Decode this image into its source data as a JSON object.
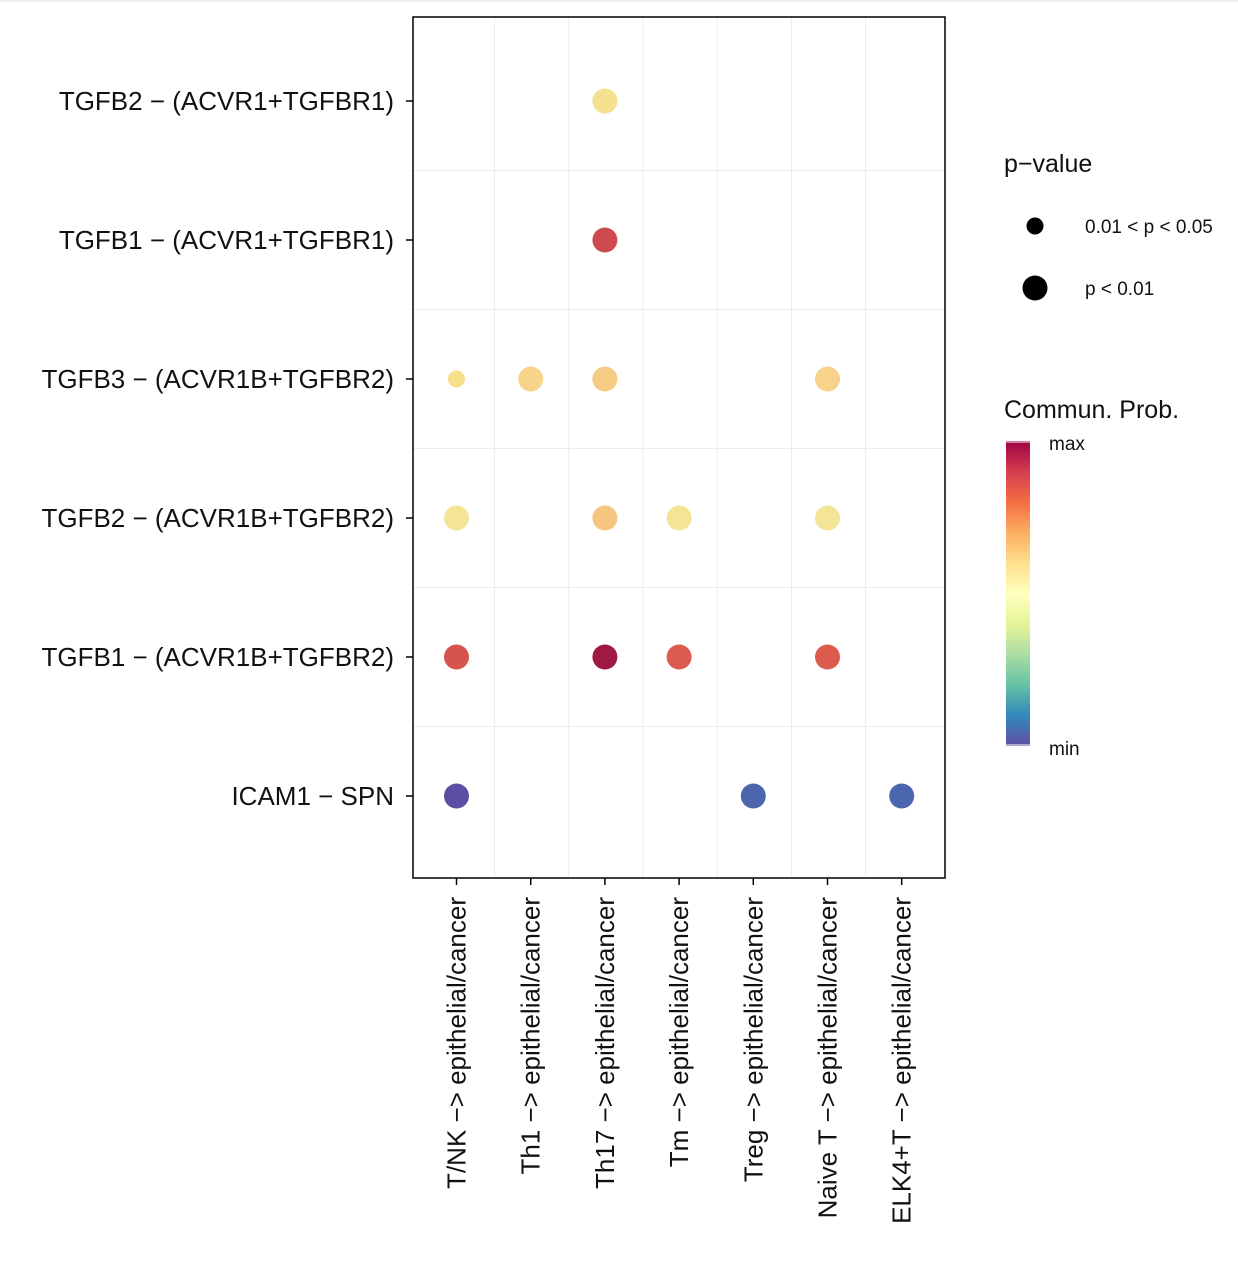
{
  "chart_data": {
    "type": "dotplot",
    "title": "",
    "xlabel": "",
    "ylabel": "",
    "x_categories": [
      "T/NK -> epithelial/cancer",
      "Th1 -> epithelial/cancer",
      "Th17 -> epithelial/cancer",
      "Tm -> epithelial/cancer",
      "Treg -> epithelial/cancer",
      "Naive T -> epithelial/cancer",
      "ELK4+T -> epithelial/cancer"
    ],
    "y_categories": [
      "TGFB2 - (ACVR1+TGFBR1)",
      "TGFB1 - (ACVR1+TGFBR1)",
      "TGFB3 - (ACVR1B+TGFBR2)",
      "TGFB2 - (ACVR1B+TGFBR2)",
      "TGFB1 - (ACVR1B+TGFBR2)",
      "ICAM1 - SPN"
    ],
    "points": [
      {
        "x": "Th17 -> epithelial/cancer",
        "y": "TGFB2 - (ACVR1+TGFBR1)",
        "prob": 0.55,
        "pvalue": "p < 0.01",
        "color": "#f5e08f"
      },
      {
        "x": "Th17 -> epithelial/cancer",
        "y": "TGFB1 - (ACVR1+TGFBR1)",
        "prob": 0.88,
        "pvalue": "p < 0.01",
        "color": "#cd4a4f"
      },
      {
        "x": "T/NK -> epithelial/cancer",
        "y": "TGFB3 - (ACVR1B+TGFBR2)",
        "prob": 0.57,
        "pvalue": "0.01 < p < 0.05",
        "color": "#f6e08c"
      },
      {
        "x": "Th1 -> epithelial/cancer",
        "y": "TGFB3 - (ACVR1B+TGFBR2)",
        "prob": 0.6,
        "pvalue": "p < 0.01",
        "color": "#f7d489"
      },
      {
        "x": "Th17 -> epithelial/cancer",
        "y": "TGFB3 - (ACVR1B+TGFBR2)",
        "prob": 0.62,
        "pvalue": "p < 0.01",
        "color": "#f6cc85"
      },
      {
        "x": "Naive T -> epithelial/cancer",
        "y": "TGFB3 - (ACVR1B+TGFBR2)",
        "prob": 0.61,
        "pvalue": "p < 0.01",
        "color": "#f6d28a"
      },
      {
        "x": "T/NK -> epithelial/cancer",
        "y": "TGFB2 - (ACVR1B+TGFBR2)",
        "prob": 0.55,
        "pvalue": "p < 0.01",
        "color": "#f4e596"
      },
      {
        "x": "Th17 -> epithelial/cancer",
        "y": "TGFB2 - (ACVR1B+TGFBR2)",
        "prob": 0.65,
        "pvalue": "p < 0.01",
        "color": "#f6c680"
      },
      {
        "x": "Tm -> epithelial/cancer",
        "y": "TGFB2 - (ACVR1B+TGFBR2)",
        "prob": 0.55,
        "pvalue": "p < 0.01",
        "color": "#f4e596"
      },
      {
        "x": "Naive T -> epithelial/cancer",
        "y": "TGFB2 - (ACVR1B+TGFBR2)",
        "prob": 0.55,
        "pvalue": "p < 0.01",
        "color": "#f4e596"
      },
      {
        "x": "T/NK -> epithelial/cancer",
        "y": "TGFB1 - (ACVR1B+TGFBR2)",
        "prob": 0.86,
        "pvalue": "p < 0.01",
        "color": "#d6534e"
      },
      {
        "x": "Th17 -> epithelial/cancer",
        "y": "TGFB1 - (ACVR1B+TGFBR2)",
        "prob": 1.0,
        "pvalue": "p < 0.01",
        "color": "#9e1a43"
      },
      {
        "x": "Tm -> epithelial/cancer",
        "y": "TGFB1 - (ACVR1B+TGFBR2)",
        "prob": 0.84,
        "pvalue": "p < 0.01",
        "color": "#db5b4e"
      },
      {
        "x": "Naive T -> epithelial/cancer",
        "y": "TGFB1 - (ACVR1B+TGFBR2)",
        "prob": 0.84,
        "pvalue": "p < 0.01",
        "color": "#db5b4e"
      },
      {
        "x": "T/NK -> epithelial/cancer",
        "y": "ICAM1 - SPN",
        "prob": 0.02,
        "pvalue": "p < 0.01",
        "color": "#5a4fa2"
      },
      {
        "x": "Treg -> epithelial/cancer",
        "y": "ICAM1 - SPN",
        "prob": 0.06,
        "pvalue": "p < 0.01",
        "color": "#4b66ad"
      },
      {
        "x": "ELK4+T -> epithelial/cancer",
        "y": "ICAM1 - SPN",
        "prob": 0.06,
        "pvalue": "p < 0.01",
        "color": "#4b66ad"
      }
    ],
    "legend_size": {
      "title": "p−value",
      "entries": [
        "0.01 < p < 0.05",
        "p < 0.01"
      ]
    },
    "legend_color": {
      "title": "Commun. Prob.",
      "max_label": "max",
      "min_label": "min",
      "palette": [
        "#9e0142",
        "#d53e4f",
        "#f46d43",
        "#fdae61",
        "#fee08b",
        "#ffffbf",
        "#e6f598",
        "#abdda4",
        "#66c2a5",
        "#3288bd",
        "#5e4fa2"
      ]
    },
    "grid": true
  }
}
